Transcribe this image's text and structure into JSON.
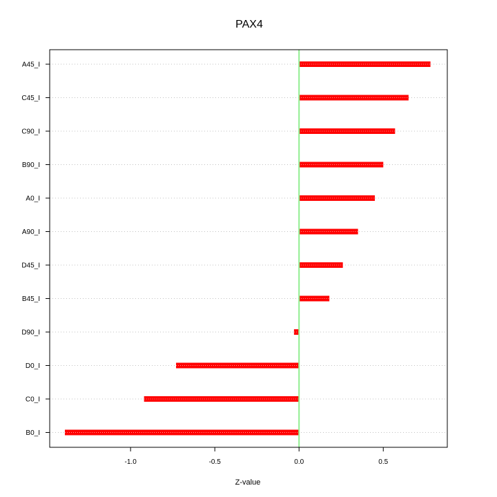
{
  "chart_data": {
    "type": "bar",
    "orientation": "horizontal",
    "title": "PAX4",
    "xlabel": "Z-value",
    "ylabel": "",
    "categories": [
      "A45_I",
      "C45_I",
      "C90_I",
      "B90_I",
      "A0_I",
      "A90_I",
      "D45_I",
      "B45_I",
      "D90_I",
      "D0_I",
      "C0_I",
      "B0_I"
    ],
    "values": [
      0.78,
      0.65,
      0.57,
      0.5,
      0.45,
      0.35,
      0.26,
      0.18,
      -0.03,
      -0.73,
      -0.92,
      -1.39
    ],
    "xlim": [
      -1.48,
      0.88
    ],
    "xticks": [
      -1.0,
      -0.5,
      0.0,
      0.5
    ],
    "xtick_labels": [
      "-1.0",
      "-0.5",
      "0.0",
      "0.5"
    ],
    "grid": "horizontal dotted",
    "reference_line": 0,
    "colors": {
      "bar": "#ff0000",
      "bar_highlight": "#ff9999",
      "reference_line": "#90ee90",
      "grid": "#c0c0c0",
      "axis": "#000000"
    }
  }
}
